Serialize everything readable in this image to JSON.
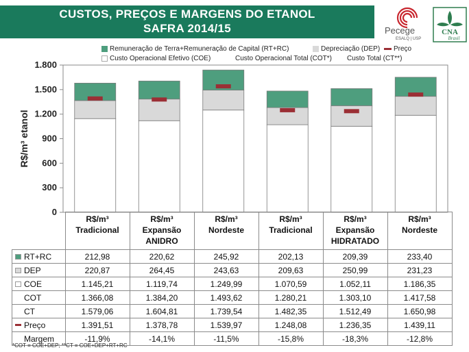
{
  "header": {
    "title_line1": "CUSTOS, PREÇOS E MARGENS DO ETANOL",
    "title_line2": "SAFRA 2014/15",
    "bg_color": "#1a7a5c",
    "logo_pecege_name": "Pecege",
    "logo_pecege_sub": "ESALQ | USP",
    "logo_cna_name": "CNA",
    "logo_cna_sub": "Brasil"
  },
  "legend": {
    "rt_rc": "Remuneração de Terra+Remuneração de Capital (RT+RC)",
    "dep": "Depreciação (DEP)",
    "preco": "Preço",
    "coe": "Custo Operacional Efetivo (COE)",
    "cot": "Custo Operacional Total (COT*)",
    "ct": "Custo Total (CT**)"
  },
  "colors": {
    "coe": "#ffffff",
    "dep": "#d9d9d9",
    "rt_rc": "#4e9e7e",
    "preco": "#9b2f35",
    "bar_border": "#7a7a7a"
  },
  "chart_data": {
    "type": "bar",
    "stacked": true,
    "ylabel": "R$/m³ etanol",
    "ylim": [
      0,
      1800
    ],
    "yticks": [
      0,
      300,
      600,
      900,
      1200,
      1500,
      1800
    ],
    "ytick_labels": [
      "0",
      "300",
      "600",
      "900",
      "1.200",
      "1.500",
      "1.800"
    ],
    "grid": false,
    "categories": [
      [
        "R$/m³",
        "Tradicional",
        ""
      ],
      [
        "R$/m³",
        "Expansão",
        "ANIDRO"
      ],
      [
        "R$/m³",
        "Nordeste",
        ""
      ],
      [
        "R$/m³",
        "Tradicional",
        ""
      ],
      [
        "R$/m³",
        "Expansão",
        "HIDRATADO"
      ],
      [
        "R$/m³",
        "Nordeste",
        ""
      ]
    ],
    "series": [
      {
        "name": "Custo Operacional Efetivo (COE)",
        "key": "coe",
        "values": [
          1145.21,
          1119.74,
          1249.99,
          1070.59,
          1052.11,
          1186.35
        ]
      },
      {
        "name": "Depreciação (DEP)",
        "key": "dep",
        "values": [
          220.87,
          264.45,
          243.63,
          209.63,
          250.99,
          231.23
        ]
      },
      {
        "name": "Remuneração de Terra+Remuneração de Capital (RT+RC)",
        "key": "rt_rc",
        "values": [
          212.98,
          220.62,
          245.92,
          202.13,
          209.39,
          233.4
        ]
      }
    ],
    "preco": {
      "name": "Preço",
      "values": [
        1391.51,
        1378.78,
        1539.97,
        1248.08,
        1236.35,
        1439.11
      ]
    }
  },
  "table": {
    "rows": [
      {
        "label": "RT+RC",
        "marker": "rt_rc",
        "values": [
          "212,98",
          "220,62",
          "245,92",
          "202,13",
          "209,39",
          "233,40"
        ]
      },
      {
        "label": "DEP",
        "marker": "dep",
        "values": [
          "220,87",
          "264,45",
          "243,63",
          "209,63",
          "250,99",
          "231,23"
        ]
      },
      {
        "label": "COE",
        "marker": "coe",
        "values": [
          "1.145,21",
          "1.119,74",
          "1.249,99",
          "1.070,59",
          "1.052,11",
          "1.186,35"
        ]
      },
      {
        "label": "COT",
        "marker": "",
        "values": [
          "1.366,08",
          "1.384,20",
          "1.493,62",
          "1.280,21",
          "1.303,10",
          "1.417,58"
        ]
      },
      {
        "label": "CT",
        "marker": "",
        "values": [
          "1.579,06",
          "1.604,81",
          "1.739,54",
          "1.482,35",
          "1.512,49",
          "1.650,98"
        ]
      },
      {
        "label": "Preço",
        "marker": "preco",
        "values": [
          "1.391,51",
          "1.378,78",
          "1.539,97",
          "1.248,08",
          "1.236,35",
          "1.439,11"
        ]
      },
      {
        "label": "Margem",
        "marker": "",
        "values": [
          "-11,9%",
          "-14,1%",
          "-11,5%",
          "-15,8%",
          "-18,3%",
          "-12,8%"
        ]
      }
    ]
  },
  "footnote": "*COT = COE+DEP; **CT = COE+DEP+RT+RC"
}
